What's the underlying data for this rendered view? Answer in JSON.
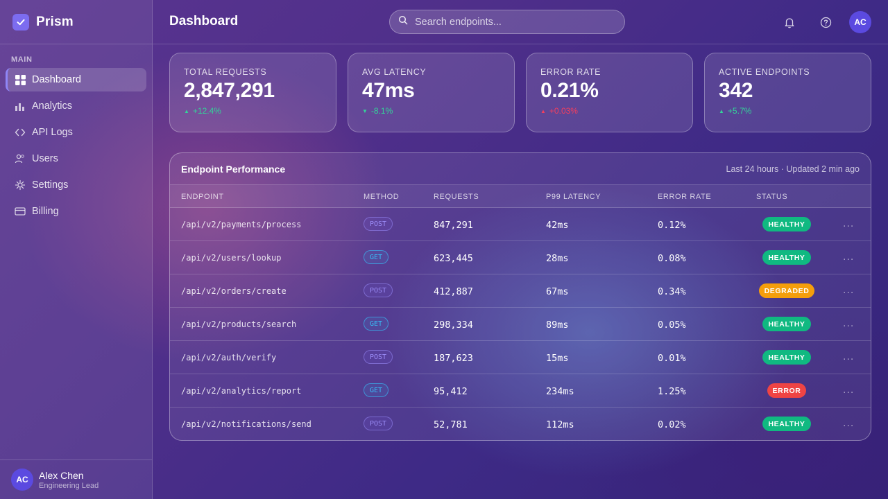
{
  "app": {
    "name": "Prism"
  },
  "sidebar": {
    "section": "MAIN",
    "items": [
      {
        "label": "Dashboard",
        "icon": "grid-icon",
        "active": true
      },
      {
        "label": "Analytics",
        "icon": "bar-chart-icon"
      },
      {
        "label": "API Logs",
        "icon": "code-icon"
      },
      {
        "label": "Users",
        "icon": "users-icon"
      },
      {
        "label": "Settings",
        "icon": "gear-icon"
      },
      {
        "label": "Billing",
        "icon": "credit-card-icon"
      }
    ],
    "user": {
      "initials": "AC",
      "name": "Alex Chen",
      "role": "Engineering Lead"
    }
  },
  "header": {
    "title": "Dashboard",
    "search_placeholder": "Search endpoints...",
    "avatar_initials": "AC"
  },
  "stats": [
    {
      "label": "TOTAL REQUESTS",
      "value": "2,847,291",
      "delta": "+12.4%",
      "direction": "up",
      "color": "#34d399"
    },
    {
      "label": "AVG LATENCY",
      "value": "47ms",
      "delta": "-8.1%",
      "direction": "down",
      "color": "#34d399"
    },
    {
      "label": "ERROR RATE",
      "value": "0.21%",
      "delta": "+0.03%",
      "direction": "up",
      "color": "#f43f5e"
    },
    {
      "label": "ACTIVE ENDPOINTS",
      "value": "342",
      "delta": "+5.7%",
      "direction": "up",
      "color": "#34d399"
    }
  ],
  "table": {
    "title": "Endpoint Performance",
    "meta": "Last 24 hours · Updated 2 min ago",
    "columns": [
      "ENDPOINT",
      "METHOD",
      "REQUESTS",
      "P99 LATENCY",
      "ERROR RATE",
      "STATUS"
    ],
    "rows": [
      {
        "endpoint": "/api/v2/payments/process",
        "method": "POST",
        "requests": "847,291",
        "latency": "42ms",
        "error_rate": "0.12%",
        "status": "HEALTHY"
      },
      {
        "endpoint": "/api/v2/users/lookup",
        "method": "GET",
        "requests": "623,445",
        "latency": "28ms",
        "error_rate": "0.08%",
        "status": "HEALTHY"
      },
      {
        "endpoint": "/api/v2/orders/create",
        "method": "POST",
        "requests": "412,887",
        "latency": "67ms",
        "error_rate": "0.34%",
        "status": "DEGRADED"
      },
      {
        "endpoint": "/api/v2/products/search",
        "method": "GET",
        "requests": "298,334",
        "latency": "89ms",
        "error_rate": "0.05%",
        "status": "HEALTHY"
      },
      {
        "endpoint": "/api/v2/auth/verify",
        "method": "POST",
        "requests": "187,623",
        "latency": "15ms",
        "error_rate": "0.01%",
        "status": "HEALTHY"
      },
      {
        "endpoint": "/api/v2/analytics/report",
        "method": "GET",
        "requests": "95,412",
        "latency": "234ms",
        "error_rate": "1.25%",
        "status": "ERROR"
      },
      {
        "endpoint": "/api/v2/notifications/send",
        "method": "POST",
        "requests": "52,781",
        "latency": "112ms",
        "error_rate": "0.02%",
        "status": "HEALTHY"
      }
    ],
    "more_label": "..."
  }
}
